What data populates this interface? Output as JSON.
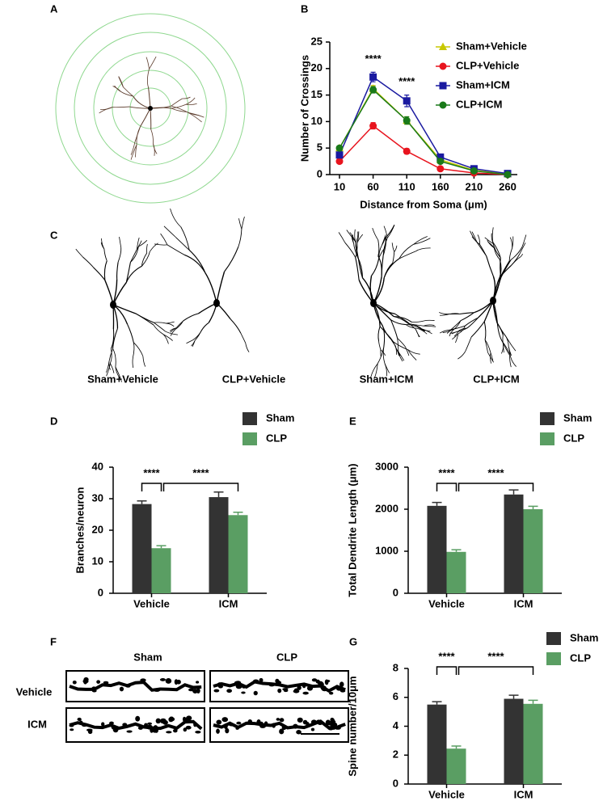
{
  "panel_labels": [
    "A",
    "B",
    "C",
    "D",
    "E",
    "F",
    "G"
  ],
  "panel_c": {
    "labels": [
      "Sham+Vehicle",
      "CLP+Vehicle",
      "Sham+ICM",
      "CLP+ICM"
    ]
  },
  "panel_f": {
    "columns": [
      "Sham",
      "CLP"
    ],
    "rows": [
      "Vehicle",
      "ICM"
    ]
  },
  "chart_data": [
    {
      "type": "line",
      "xlabel": "Distance from Soma (μm)",
      "ylabel": "Number of Crossings",
      "categories": [
        "10",
        "60",
        "110",
        "160",
        "210",
        "260"
      ],
      "ylim": [
        0,
        25
      ],
      "yticks": [
        0,
        5,
        10,
        15,
        20,
        25
      ],
      "legend": "upper right",
      "series": [
        {
          "name": "Sham+Vehicle",
          "color": "#c8c800",
          "marker": "triangle",
          "values": [
            5,
            16.2,
            10.2,
            2.8,
            0.8,
            0.1
          ],
          "errors": [
            0.3,
            0.6,
            0.7,
            0.3,
            0.2,
            0.1
          ]
        },
        {
          "name": "CLP+Vehicle",
          "color": "#e8141e",
          "marker": "circle",
          "values": [
            2.5,
            9.2,
            4.4,
            1.1,
            0.3,
            0
          ],
          "errors": [
            0.2,
            0.6,
            0.5,
            0.2,
            0.1,
            0.1
          ]
        },
        {
          "name": "Sham+ICM",
          "color": "#1a1aa0",
          "marker": "square",
          "values": [
            3.7,
            18.4,
            13.9,
            3.3,
            1.1,
            0.2
          ],
          "errors": [
            0.3,
            0.9,
            1.1,
            0.3,
            0.2,
            0.1
          ]
        },
        {
          "name": "CLP+ICM",
          "color": "#1a7a1a",
          "marker": "circle",
          "values": [
            5,
            16,
            10.2,
            2.5,
            0.7,
            0
          ],
          "errors": [
            0.3,
            0.6,
            0.7,
            0.3,
            0.2,
            0.1
          ]
        }
      ],
      "annotations": [
        {
          "text": "****",
          "category": "60"
        },
        {
          "text": "****",
          "category": "110"
        }
      ]
    },
    {
      "type": "bar",
      "ylabel": "Branches/neuron",
      "categories": [
        "Vehicle",
        "ICM"
      ],
      "ylim": [
        0,
        40
      ],
      "yticks": [
        0,
        10,
        20,
        30,
        40
      ],
      "legend": "upper right",
      "series": [
        {
          "name": "Sham",
          "color": "#333333",
          "values": [
            28.3,
            30.5
          ],
          "errors": [
            1,
            1.6
          ]
        },
        {
          "name": "CLP",
          "color": "#5a9e63",
          "values": [
            14.3,
            24.8
          ],
          "errors": [
            0.8,
            0.9
          ]
        }
      ],
      "significance": [
        "****",
        "****"
      ]
    },
    {
      "type": "bar",
      "ylabel": "Total Dendrite Length (μm)",
      "categories": [
        "Vehicle",
        "ICM"
      ],
      "ylim": [
        0,
        3000
      ],
      "yticks": [
        0,
        1000,
        2000,
        3000
      ],
      "legend": "upper right",
      "series": [
        {
          "name": "Sham",
          "color": "#333333",
          "values": [
            2080,
            2350
          ],
          "errors": [
            80,
            110
          ]
        },
        {
          "name": "CLP",
          "color": "#5a9e63",
          "values": [
            985,
            2000
          ],
          "errors": [
            50,
            70
          ]
        }
      ],
      "significance": [
        "****",
        "****"
      ]
    },
    {
      "type": "bar",
      "ylabel": "Spine number/10μm",
      "categories": [
        "Vehicle",
        "ICM"
      ],
      "ylim": [
        0,
        8
      ],
      "yticks": [
        0,
        2,
        4,
        6,
        8
      ],
      "legend": "upper right",
      "series": [
        {
          "name": "Sham",
          "color": "#333333",
          "values": [
            5.5,
            5.9
          ],
          "errors": [
            0.2,
            0.25
          ]
        },
        {
          "name": "CLP",
          "color": "#5a9e63",
          "values": [
            2.45,
            5.55
          ],
          "errors": [
            0.18,
            0.25
          ]
        }
      ],
      "significance": [
        "****",
        "****"
      ]
    }
  ]
}
